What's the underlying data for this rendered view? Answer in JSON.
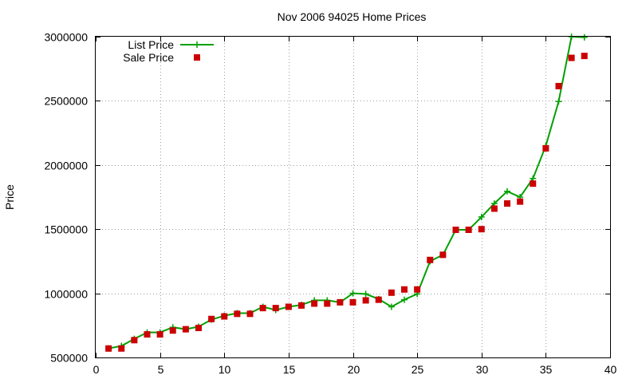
{
  "chart_data": {
    "type": "line",
    "title": "Nov 2006 94025 Home Prices",
    "xlabel": "",
    "ylabel": "Price",
    "xlim": [
      0,
      40
    ],
    "ylim": [
      500000,
      3000000
    ],
    "x_ticks": [
      0,
      5,
      10,
      15,
      20,
      25,
      30,
      35,
      40
    ],
    "y_ticks": [
      500000,
      1000000,
      1500000,
      2000000,
      2500000,
      3000000
    ],
    "x_tick_labels": [
      "0",
      "5",
      "10",
      "15",
      "20",
      "25",
      "30",
      "35",
      "40"
    ],
    "y_tick_labels": [
      "500000",
      "1000000",
      "1500000",
      "2000000",
      "2500000",
      "3000000"
    ],
    "grid": true,
    "legend_position": "top-left",
    "series": [
      {
        "name": "List Price",
        "style": "line-plus",
        "color": "#00a000",
        "x": [
          1,
          2,
          3,
          4,
          5,
          6,
          7,
          8,
          9,
          10,
          11,
          12,
          13,
          14,
          15,
          16,
          17,
          18,
          19,
          20,
          21,
          22,
          23,
          24,
          25,
          26,
          27,
          28,
          29,
          30,
          31,
          32,
          33,
          34,
          35,
          36,
          37,
          38
        ],
        "y": [
          570000,
          590000,
          645000,
          695000,
          695000,
          735000,
          720000,
          740000,
          795000,
          825000,
          845000,
          845000,
          895000,
          870000,
          895000,
          910000,
          945000,
          945000,
          930000,
          1000000,
          995000,
          955000,
          895000,
          950000,
          995000,
          1250000,
          1300000,
          1495000,
          1495000,
          1595000,
          1700000,
          1795000,
          1750000,
          1895000,
          2150000,
          2495000,
          3000000,
          2995000
        ]
      },
      {
        "name": "Sale Price",
        "style": "square-marker",
        "color": "#cc0000",
        "x": [
          1,
          2,
          3,
          4,
          5,
          6,
          7,
          8,
          9,
          10,
          11,
          12,
          13,
          14,
          15,
          16,
          17,
          18,
          19,
          20,
          21,
          22,
          23,
          24,
          25,
          26,
          27,
          28,
          29,
          30,
          31,
          32,
          33,
          34,
          35,
          36,
          37,
          38
        ],
        "y": [
          570000,
          570000,
          635000,
          680000,
          680000,
          710000,
          720000,
          730000,
          800000,
          820000,
          840000,
          840000,
          885000,
          885000,
          895000,
          905000,
          920000,
          920000,
          930000,
          930000,
          945000,
          950000,
          1005000,
          1030000,
          1030000,
          1260000,
          1300000,
          1495000,
          1495000,
          1500000,
          1660000,
          1700000,
          1715000,
          1855000,
          2130000,
          2615000,
          2835000,
          2850000
        ]
      }
    ]
  }
}
